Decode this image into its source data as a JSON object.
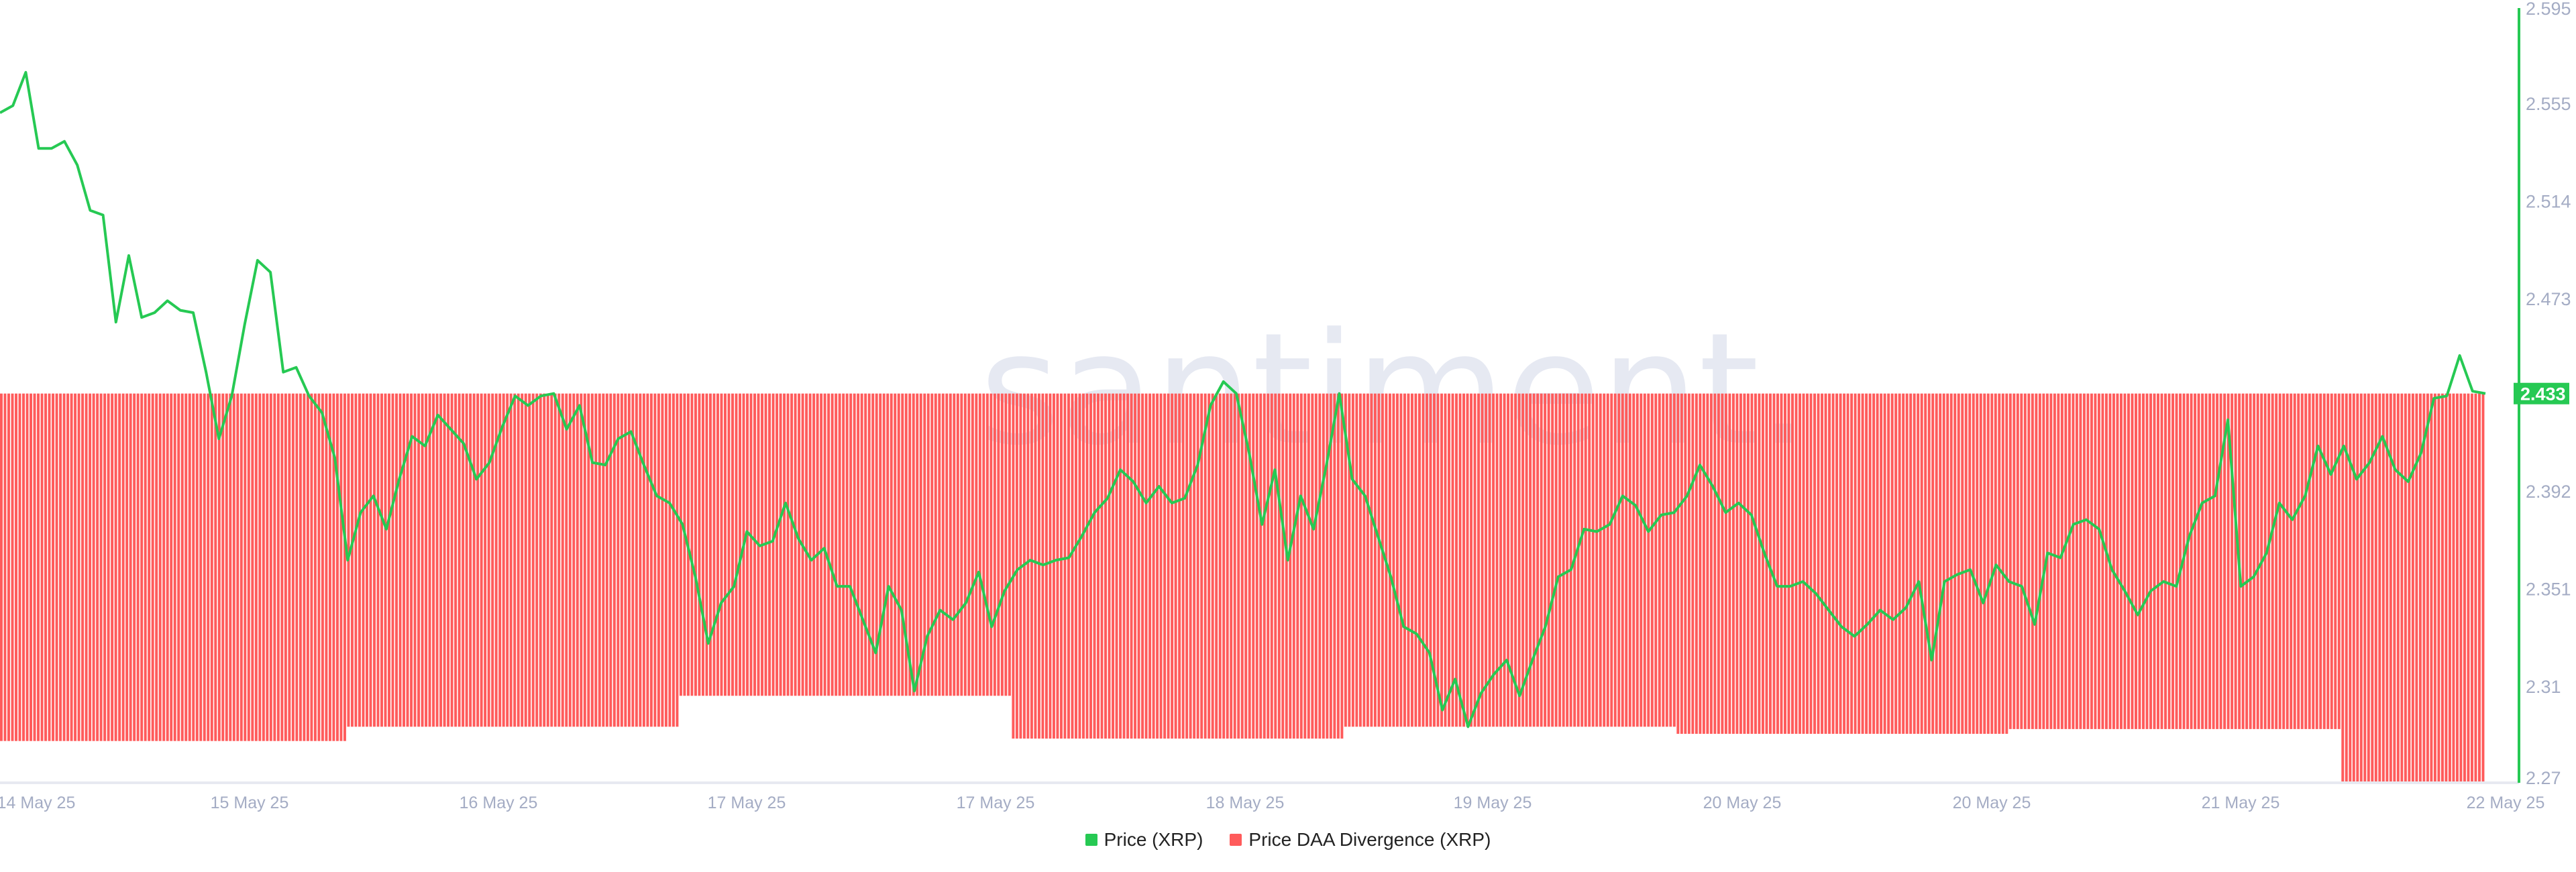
{
  "watermark": "santiment.",
  "legend": [
    {
      "label": "Price (XRP)",
      "color": "#26c953"
    },
    {
      "label": "Price DAA Divergence (XRP)",
      "color": "#ff5b5b"
    }
  ],
  "chart_data": {
    "type": "line+bar",
    "y_axis": {
      "position": "right",
      "range": [
        2.27,
        2.595
      ],
      "ticks": [
        "2.595",
        "2.555",
        "2.514",
        "2.473",
        "2.433",
        "2.392",
        "2.351",
        "2.31",
        "2.27"
      ],
      "current_value_label": "2.433"
    },
    "x_axis": {
      "tick_labels": [
        "14 May 25",
        "15 May 25",
        "16 May 25",
        "17 May 25",
        "17 May 25",
        "18 May 25",
        "19 May 25",
        "20 May 25",
        "20 May 25",
        "21 May 25",
        "22 May 25"
      ]
    },
    "grid": false,
    "legend_placement": "bottom",
    "series": [
      {
        "name": "Price (XRP)",
        "type": "line",
        "color": "#26c953",
        "values": [
          2.551,
          2.554,
          2.568,
          2.536,
          2.536,
          2.539,
          2.529,
          2.51,
          2.508,
          2.463,
          2.491,
          2.465,
          2.467,
          2.472,
          2.468,
          2.467,
          2.442,
          2.414,
          2.432,
          2.462,
          2.489,
          2.484,
          2.442,
          2.444,
          2.432,
          2.425,
          2.406,
          2.363,
          2.383,
          2.39,
          2.376,
          2.397,
          2.415,
          2.411,
          2.424,
          2.418,
          2.412,
          2.397,
          2.404,
          2.419,
          2.432,
          2.428,
          2.432,
          2.433,
          2.418,
          2.428,
          2.404,
          2.403,
          2.414,
          2.417,
          2.403,
          2.39,
          2.387,
          2.378,
          2.356,
          2.328,
          2.345,
          2.352,
          2.375,
          2.369,
          2.371,
          2.387,
          2.372,
          2.363,
          2.368,
          2.352,
          2.352,
          2.338,
          2.324,
          2.352,
          2.342,
          2.308,
          2.331,
          2.342,
          2.338,
          2.345,
          2.358,
          2.335,
          2.35,
          2.359,
          2.363,
          2.361,
          2.363,
          2.364,
          2.373,
          2.383,
          2.389,
          2.401,
          2.396,
          2.387,
          2.394,
          2.387,
          2.389,
          2.403,
          2.428,
          2.438,
          2.433,
          2.408,
          2.378,
          2.401,
          2.363,
          2.39,
          2.376,
          2.403,
          2.433,
          2.397,
          2.39,
          2.373,
          2.356,
          2.335,
          2.332,
          2.324,
          2.3,
          2.313,
          2.293,
          2.307,
          2.315,
          2.321,
          2.306,
          2.321,
          2.335,
          2.356,
          2.359,
          2.376,
          2.375,
          2.378,
          2.39,
          2.386,
          2.375,
          2.382,
          2.383,
          2.39,
          2.403,
          2.394,
          2.383,
          2.387,
          2.382,
          2.366,
          2.352,
          2.352,
          2.354,
          2.349,
          2.342,
          2.335,
          2.331,
          2.336,
          2.342,
          2.338,
          2.343,
          2.354,
          2.321,
          2.354,
          2.357,
          2.359,
          2.345,
          2.361,
          2.354,
          2.352,
          2.336,
          2.366,
          2.364,
          2.378,
          2.38,
          2.376,
          2.359,
          2.35,
          2.34,
          2.35,
          2.354,
          2.352,
          2.373,
          2.387,
          2.39,
          2.422,
          2.352,
          2.356,
          2.366,
          2.387,
          2.38,
          2.39,
          2.411,
          2.399,
          2.411,
          2.397,
          2.404,
          2.415,
          2.401,
          2.396,
          2.408,
          2.431,
          2.432,
          2.449,
          2.434,
          2.433
        ]
      },
      {
        "name": "Price DAA Divergence (XRP)",
        "type": "bar",
        "color": "#ff5b5b",
        "bar_top": 2.433,
        "segments": [
          {
            "bars": 94,
            "bar_bottom": 2.287
          },
          {
            "bars": 90,
            "bar_bottom": 2.293
          },
          {
            "bars": 90,
            "bar_bottom": 2.306
          },
          {
            "bars": 90,
            "bar_bottom": 2.288
          },
          {
            "bars": 90,
            "bar_bottom": 2.293
          },
          {
            "bars": 90,
            "bar_bottom": 2.29
          },
          {
            "bars": 90,
            "bar_bottom": 2.292
          },
          {
            "bars": 39,
            "bar_bottom": 2.27
          }
        ]
      }
    ]
  }
}
